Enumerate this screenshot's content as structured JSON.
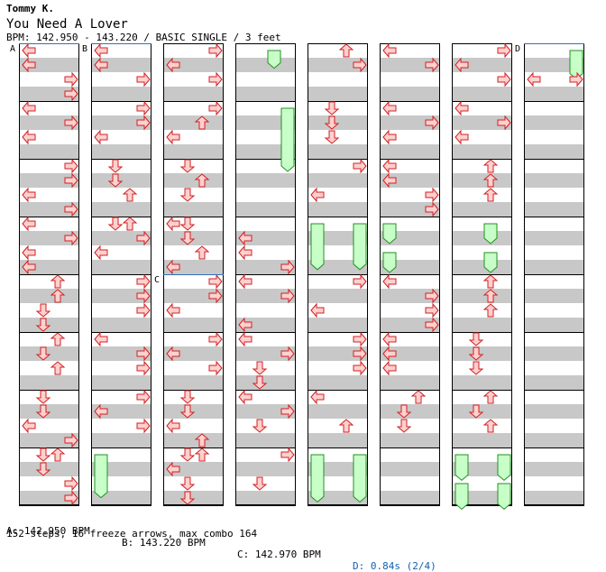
{
  "song": {
    "artist": "Tommy K.",
    "title": "You Need A Lover",
    "info": "BPM: 142.950 - 143.220 / BASIC SINGLE / 3 feet"
  },
  "colors": {
    "stripe": "#c8c8c8",
    "arrow_fill": "#ffd0d0",
    "arrow_stroke": "#d02020",
    "freeze_fill": "#c8ffc8",
    "freeze_stroke": "#209020",
    "marker_line": "#3070c0",
    "stop_text": "#1060b0"
  },
  "markers": [
    {
      "id": "A",
      "column": 0,
      "measure": 0
    },
    {
      "id": "B",
      "column": 1,
      "measure": 0
    },
    {
      "id": "C",
      "column": 2,
      "measure": 4
    },
    {
      "id": "D",
      "column": 7,
      "measure": 0
    }
  ],
  "columns": [
    {
      "measures": [
        {
          "notes": [
            [
              0,
              "L"
            ],
            [
              1,
              "L"
            ],
            [
              2,
              "R"
            ],
            [
              3,
              "R"
            ]
          ]
        },
        {
          "notes": [
            [
              0,
              "L"
            ],
            [
              1,
              "R"
            ],
            [
              2,
              "L"
            ]
          ]
        },
        {
          "notes": [
            [
              0,
              "R"
            ],
            [
              1,
              "R"
            ],
            [
              2,
              "L"
            ],
            [
              3,
              "R"
            ]
          ]
        },
        {
          "notes": [
            [
              0,
              "L"
            ],
            [
              1,
              "R"
            ],
            [
              2,
              "L"
            ],
            [
              3,
              "L"
            ]
          ]
        },
        {
          "notes": [
            [
              0,
              "U"
            ],
            [
              1,
              "U"
            ],
            [
              2,
              "D"
            ],
            [
              3,
              "D"
            ]
          ]
        },
        {
          "notes": [
            [
              0,
              "U"
            ],
            [
              1,
              "D"
            ],
            [
              2,
              "U"
            ]
          ]
        },
        {
          "notes": [
            [
              0,
              "D"
            ],
            [
              1,
              "D"
            ],
            [
              2,
              "L"
            ],
            [
              3,
              "R"
            ]
          ]
        },
        {
          "notes": [
            [
              0,
              "D"
            ],
            [
              0,
              "U"
            ],
            [
              1,
              "D"
            ],
            [
              2,
              "R"
            ],
            [
              3,
              "R"
            ]
          ]
        }
      ]
    },
    {
      "measures": [
        {
          "notes": [
            [
              0,
              "L"
            ],
            [
              1,
              "L"
            ],
            [
              2,
              "R"
            ]
          ]
        },
        {
          "notes": [
            [
              0,
              "R"
            ],
            [
              1,
              "R"
            ],
            [
              2,
              "L"
            ]
          ]
        },
        {
          "notes": [
            [
              0,
              "D"
            ],
            [
              1,
              "D"
            ],
            [
              2,
              "U"
            ]
          ]
        },
        {
          "notes": [
            [
              0,
              "D"
            ],
            [
              0,
              "U"
            ],
            [
              1,
              "R"
            ],
            [
              2,
              "L"
            ]
          ]
        },
        {
          "notes": [
            [
              0,
              "R"
            ],
            [
              1,
              "R"
            ],
            [
              2,
              "R"
            ]
          ]
        },
        {
          "notes": [
            [
              0,
              "L"
            ],
            [
              1,
              "R"
            ],
            [
              2,
              "R"
            ]
          ]
        },
        {
          "notes": [
            [
              0,
              "R"
            ],
            [
              1,
              "L"
            ],
            [
              2,
              "R"
            ]
          ]
        },
        {
          "notes": [
            [
              0,
              "F"
            ]
          ]
        }
      ],
      "freezes": [
        [
          7,
          0,
          2.6,
          "L"
        ]
      ]
    },
    {
      "measures": [
        {
          "notes": [
            [
              0,
              "R"
            ],
            [
              1,
              "L"
            ],
            [
              2,
              "R"
            ]
          ]
        },
        {
          "notes": [
            [
              0,
              "R"
            ],
            [
              1,
              "U"
            ],
            [
              2,
              "L"
            ]
          ]
        },
        {
          "notes": [
            [
              0,
              "D"
            ],
            [
              1,
              "U"
            ],
            [
              2,
              "D"
            ]
          ]
        },
        {
          "notes": [
            [
              0,
              "D"
            ],
            [
              0,
              "L"
            ],
            [
              1,
              "D"
            ],
            [
              2,
              "U"
            ],
            [
              3,
              "L"
            ]
          ]
        },
        {
          "notes": [
            [
              0,
              "R"
            ],
            [
              1,
              "R"
            ],
            [
              2,
              "L"
            ]
          ]
        },
        {
          "notes": [
            [
              0,
              "R"
            ],
            [
              1,
              "L"
            ],
            [
              2,
              "R"
            ]
          ]
        },
        {
          "notes": [
            [
              0,
              "D"
            ],
            [
              1,
              "D"
            ],
            [
              2,
              "L"
            ],
            [
              3,
              "U"
            ]
          ]
        },
        {
          "notes": [
            [
              0,
              "D"
            ],
            [
              0,
              "U"
            ],
            [
              1,
              "L"
            ],
            [
              2,
              "D"
            ],
            [
              3,
              "D"
            ]
          ]
        }
      ]
    },
    {
      "measures": [
        {
          "notes": []
        },
        {
          "notes": []
        },
        {
          "notes": []
        },
        {
          "notes": [
            [
              1,
              "L"
            ],
            [
              2,
              "L"
            ],
            [
              3,
              "R"
            ]
          ]
        },
        {
          "notes": [
            [
              0,
              "L"
            ],
            [
              1,
              "R"
            ],
            [
              3,
              "L"
            ]
          ]
        },
        {
          "notes": [
            [
              0,
              "L"
            ],
            [
              1,
              "R"
            ],
            [
              2,
              "D"
            ],
            [
              3,
              "D"
            ]
          ]
        },
        {
          "notes": [
            [
              0,
              "L"
            ],
            [
              1,
              "R"
            ],
            [
              2,
              "D"
            ]
          ]
        },
        {
          "notes": [
            [
              0,
              "R"
            ],
            [
              2,
              "D"
            ]
          ]
        }
      ],
      "freezes": [
        [
          0,
          0,
          0.85,
          "U"
        ],
        [
          1,
          0,
          4.0,
          "R"
        ]
      ]
    },
    {
      "measures": [
        {
          "notes": [
            [
              0,
              "U"
            ],
            [
              1,
              "R"
            ]
          ]
        },
        {
          "notes": [
            [
              0,
              "D"
            ],
            [
              1,
              "D"
            ],
            [
              2,
              "D"
            ]
          ]
        },
        {
          "notes": [
            [
              0,
              "R"
            ],
            [
              2,
              "L"
            ]
          ]
        },
        {
          "notes": []
        },
        {
          "notes": [
            [
              0,
              "R"
            ],
            [
              2,
              "L"
            ]
          ]
        },
        {
          "notes": [
            [
              0,
              "R"
            ],
            [
              1,
              "R"
            ],
            [
              2,
              "R"
            ]
          ]
        },
        {
          "notes": [
            [
              0,
              "L"
            ],
            [
              2,
              "U"
            ]
          ]
        },
        {
          "notes": []
        }
      ],
      "freezes": [
        [
          3,
          0,
          2.8,
          "L"
        ],
        [
          3,
          0,
          2.8,
          "R"
        ],
        [
          7,
          0,
          2.9,
          "L"
        ],
        [
          7,
          0,
          2.9,
          "R"
        ]
      ]
    },
    {
      "measures": [
        {
          "notes": [
            [
              0,
              "L"
            ],
            [
              1,
              "R"
            ]
          ]
        },
        {
          "notes": [
            [
              0,
              "L"
            ],
            [
              1,
              "R"
            ],
            [
              2,
              "L"
            ]
          ]
        },
        {
          "notes": [
            [
              0,
              "L"
            ],
            [
              1,
              "L"
            ],
            [
              2,
              "R"
            ],
            [
              3,
              "R"
            ]
          ]
        },
        {
          "notes": []
        },
        {
          "notes": [
            [
              0,
              "L"
            ],
            [
              1,
              "R"
            ],
            [
              2,
              "R"
            ],
            [
              3,
              "R"
            ]
          ]
        },
        {
          "notes": [
            [
              0,
              "L"
            ],
            [
              1,
              "L"
            ],
            [
              2,
              "L"
            ]
          ]
        },
        {
          "notes": [
            [
              0,
              "U"
            ],
            [
              1,
              "D"
            ],
            [
              2,
              "D"
            ]
          ]
        },
        {
          "notes": []
        }
      ],
      "freezes": [
        [
          3,
          0,
          1.0,
          "L"
        ],
        [
          3,
          2,
          3.0,
          "L"
        ]
      ]
    },
    {
      "measures": [
        {
          "notes": [
            [
              0,
              "R"
            ],
            [
              1,
              "L"
            ],
            [
              2,
              "R"
            ]
          ]
        },
        {
          "notes": [
            [
              0,
              "L"
            ],
            [
              1,
              "R"
            ],
            [
              2,
              "L"
            ]
          ]
        },
        {
          "notes": [
            [
              0,
              "U"
            ],
            [
              1,
              "U"
            ],
            [
              2,
              "U"
            ]
          ]
        },
        {
          "notes": []
        },
        {
          "notes": [
            [
              0,
              "U"
            ],
            [
              1,
              "U"
            ],
            [
              2,
              "U"
            ]
          ]
        },
        {
          "notes": [
            [
              0,
              "D"
            ],
            [
              1,
              "D"
            ],
            [
              2,
              "D"
            ]
          ]
        },
        {
          "notes": [
            [
              0,
              "U"
            ],
            [
              1,
              "D"
            ],
            [
              2,
              "U"
            ]
          ]
        },
        {
          "notes": []
        }
      ],
      "freezes": [
        [
          3,
          0,
          1.0,
          "U"
        ],
        [
          3,
          2,
          3.0,
          "U"
        ],
        [
          7,
          0,
          1.4,
          "L"
        ],
        [
          7,
          0,
          1.4,
          "R"
        ],
        [
          7,
          2,
          3.4,
          "L"
        ],
        [
          7,
          2,
          3.4,
          "R"
        ]
      ]
    },
    {
      "measures": [
        {
          "notes": [
            [
              2,
              "L"
            ],
            [
              2,
              "R"
            ]
          ]
        },
        {
          "notes": []
        },
        {
          "notes": []
        },
        {
          "notes": []
        },
        {
          "notes": []
        },
        {
          "notes": []
        },
        {
          "notes": []
        },
        {
          "notes": []
        }
      ],
      "freezes": [
        [
          0,
          0,
          1.6,
          "R"
        ]
      ]
    }
  ],
  "footer": {
    "bpm_a": "A: 142.950 BPM",
    "bpm_b": "B: 143.220 BPM",
    "bpm_c": "C: 142.970 BPM",
    "stop_d": "D: 0.84s (2/4)",
    "stats": "152 steps, 16 freeze arrows, max combo 164"
  }
}
